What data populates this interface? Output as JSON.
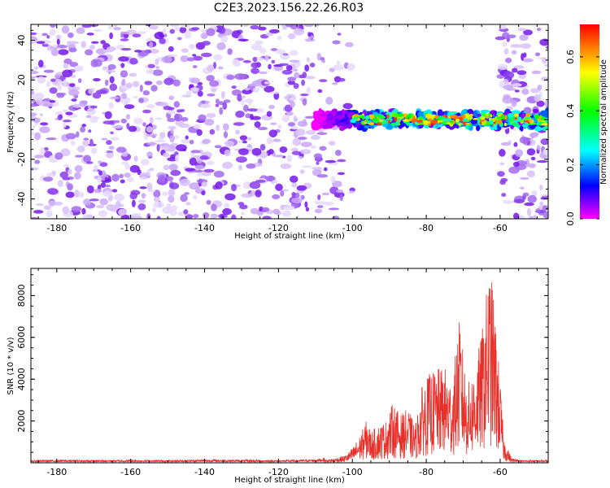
{
  "title": "C2E3.2023.156.22.26.R03",
  "colors": {
    "snr_line": "#e8302a",
    "spectrogram_noise": "#7a1ee6",
    "frame": "#000000"
  },
  "chart_data": [
    {
      "type": "heatmap",
      "panel": "top",
      "xlabel": "Height of straight line (km)",
      "ylabel": "Frequency (Hz)",
      "xlim": [
        -187,
        -47
      ],
      "ylim": [
        -50,
        48
      ],
      "xticks": [
        -180,
        -160,
        -140,
        -120,
        -100,
        -80,
        -60
      ],
      "yticks": [
        -40,
        -20,
        0,
        20,
        40
      ],
      "grid": false,
      "colorbar": {
        "label": "Normalized spectral amplitude",
        "range": [
          0,
          0.72
        ],
        "ticks": [
          0.0,
          0.2,
          0.4,
          0.6
        ],
        "colormap": "rainbow (magenta-blue-cyan-green-yellow-red)"
      },
      "signal_band": {
        "x_range": [
          -110,
          -47
        ],
        "frequency_center": 0,
        "frequency_halfwidth": 4,
        "peak_amplitude": 0.7
      },
      "noise_regions": [
        {
          "x_range": [
            -187,
            -100
          ],
          "frequency_range": [
            -50,
            48
          ],
          "amplitude_range": [
            0,
            0.2
          ]
        },
        {
          "x_range": [
            -60,
            -47
          ],
          "frequency_range": [
            -50,
            48
          ],
          "amplitude_range": [
            0,
            0.2
          ]
        }
      ]
    },
    {
      "type": "line",
      "panel": "bottom",
      "xlabel": "Height of straight line (km)",
      "ylabel": "SNR (10 * v/v)",
      "xlim": [
        -187,
        -47
      ],
      "ylim": [
        0,
        9300
      ],
      "xticks": [
        -180,
        -160,
        -140,
        -120,
        -100,
        -80,
        -60
      ],
      "yticks": [
        2000,
        4000,
        6000,
        8000
      ],
      "grid": false,
      "series": [
        {
          "x": [
            -187,
            -180,
            -170,
            -160,
            -150,
            -140,
            -130,
            -120,
            -110,
            -105,
            -102,
            -100,
            -98,
            -96,
            -95,
            -93,
            -91,
            -89,
            -87,
            -85,
            -83,
            -81,
            -79,
            -77,
            -75,
            -73,
            -71,
            -69,
            -67,
            -65,
            -63,
            -62,
            -61,
            -60,
            -59,
            -57,
            -55,
            -50,
            -47
          ],
          "y": [
            80,
            90,
            80,
            90,
            80,
            100,
            90,
            80,
            100,
            200,
            350,
            700,
            1300,
            2100,
            1500,
            1800,
            2000,
            2900,
            2300,
            2600,
            1800,
            3800,
            4300,
            4500,
            4600,
            3800,
            6900,
            3700,
            4500,
            6200,
            9300,
            8500,
            6200,
            4000,
            1200,
            250,
            80,
            80,
            80
          ]
        }
      ]
    }
  ]
}
